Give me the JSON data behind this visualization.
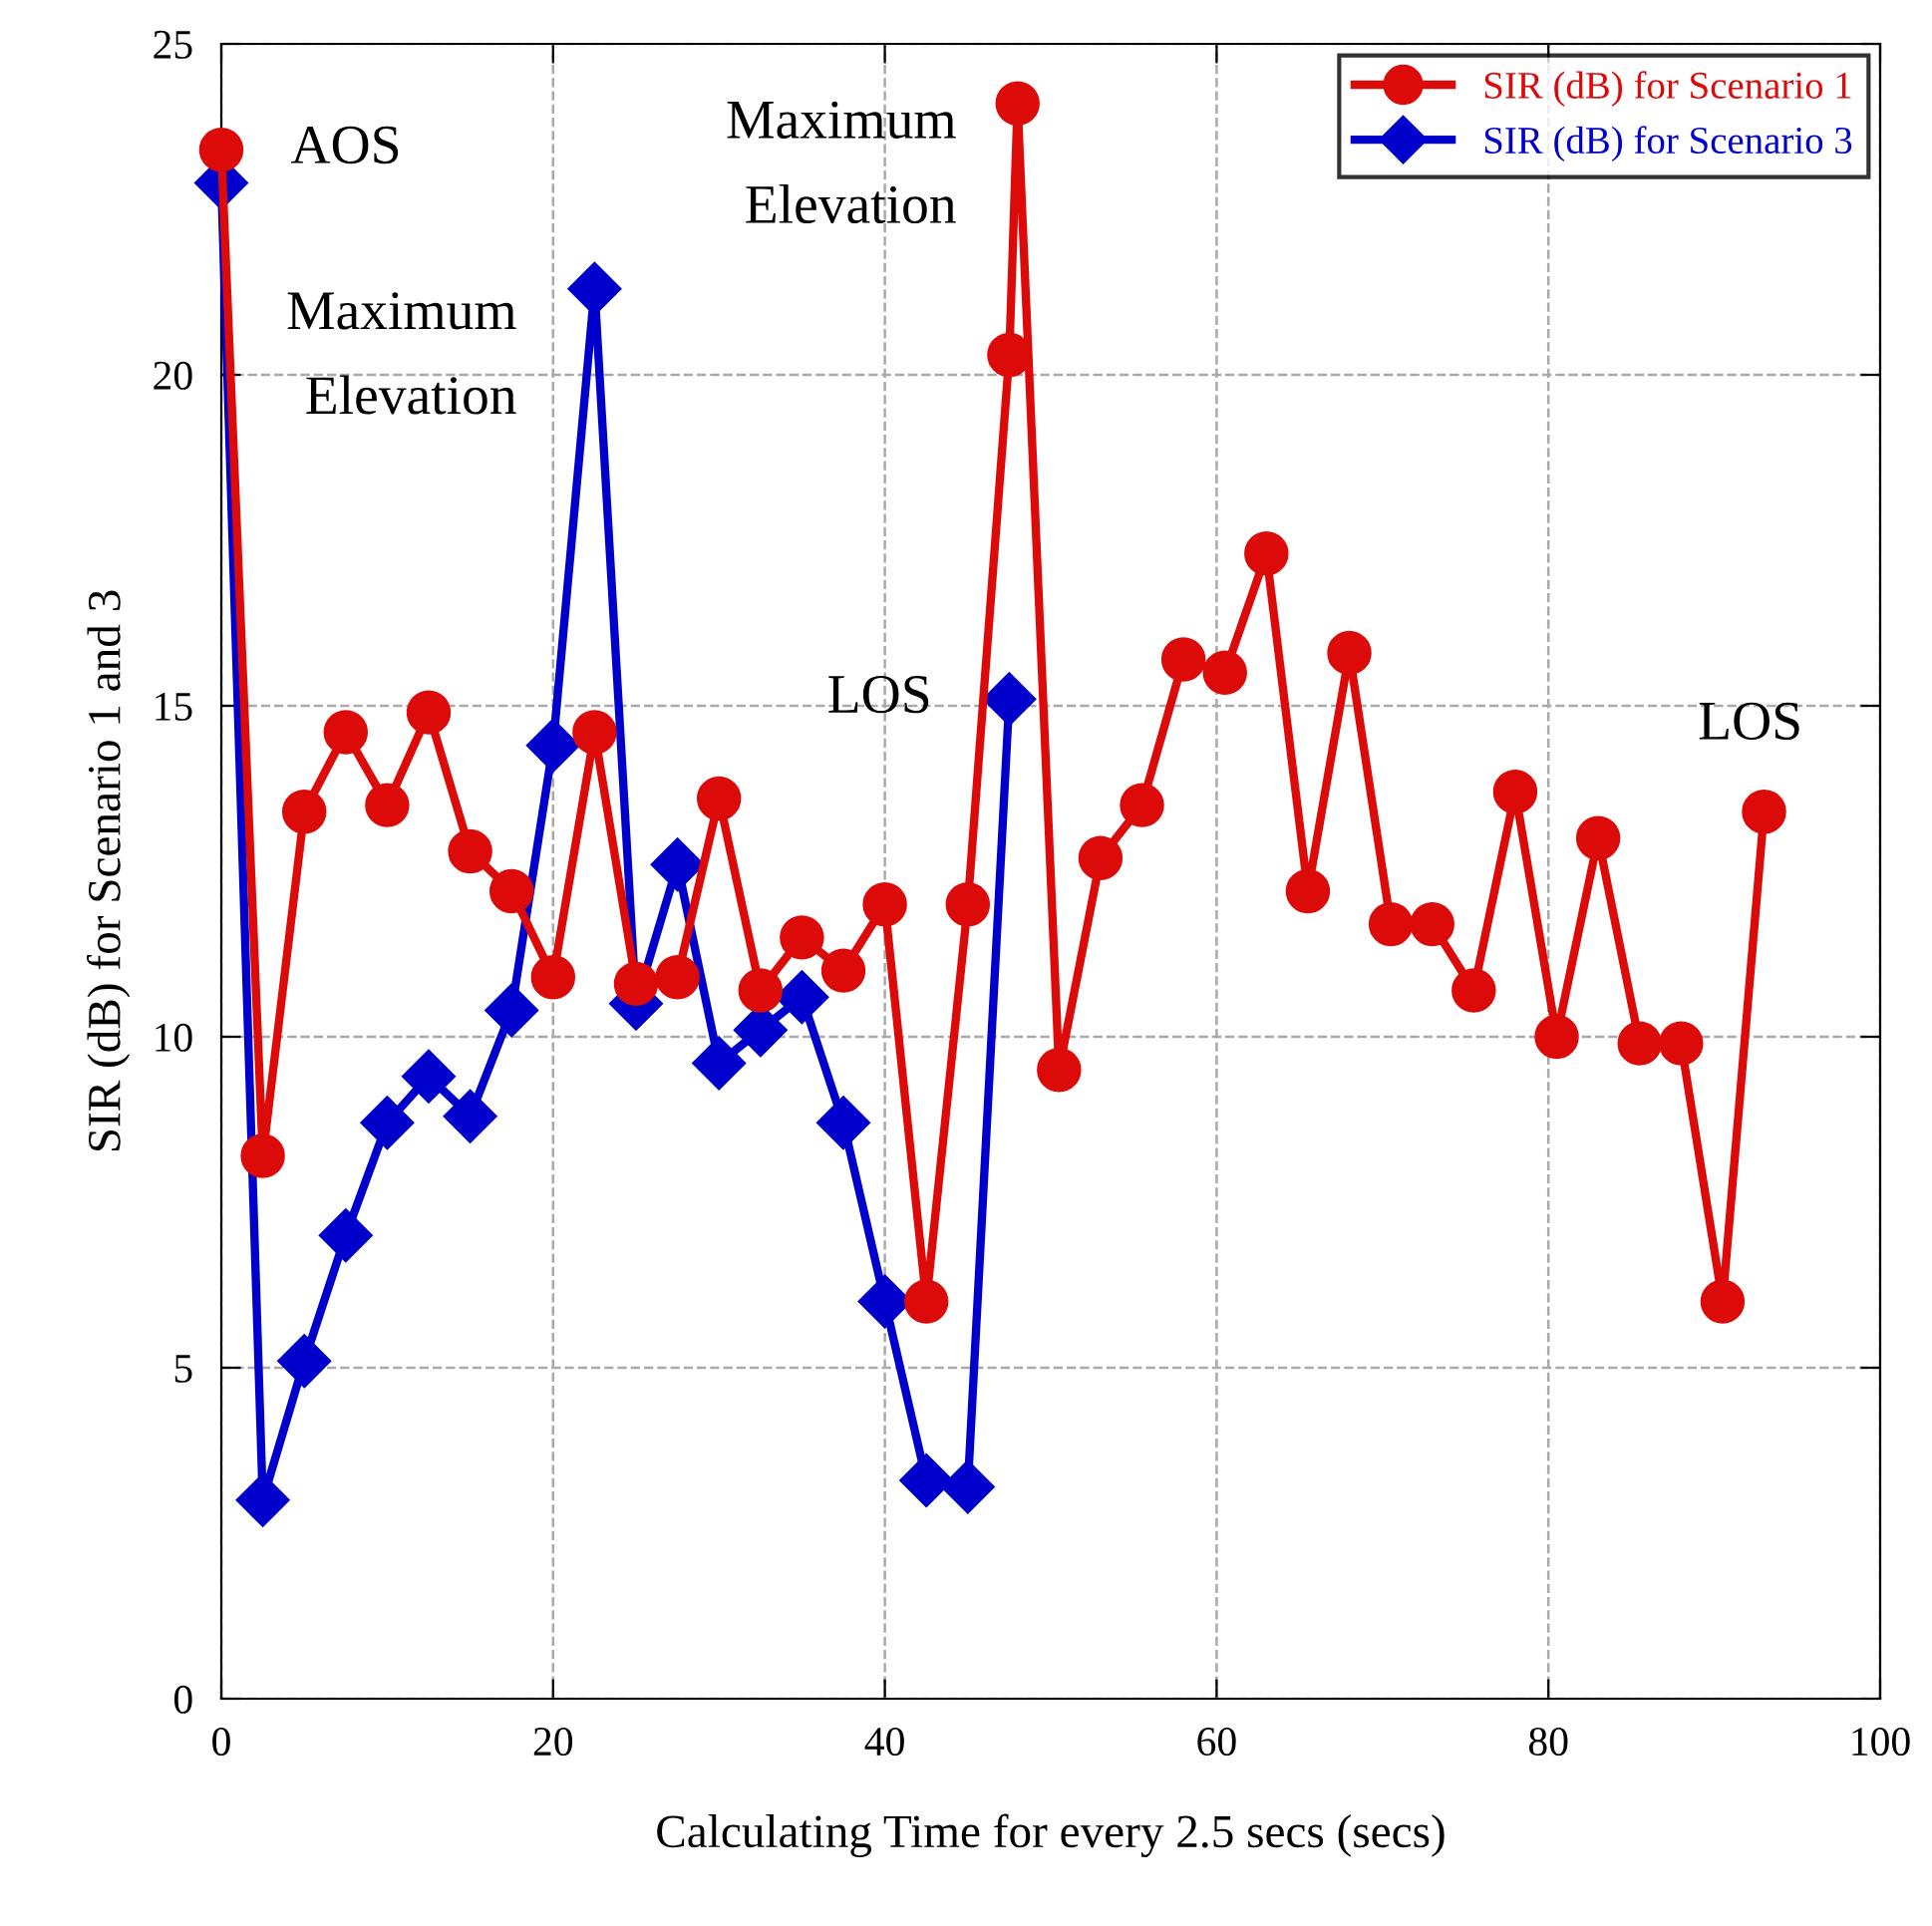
{
  "chart_data": {
    "type": "line",
    "xlabel": "Calculating Time for every 2.5 secs (secs)",
    "ylabel": "SIR (dB) for Scenario 1 and 3",
    "xlim": [
      0,
      100
    ],
    "ylim": [
      0,
      25
    ],
    "xticks": [
      0,
      20,
      40,
      60,
      80,
      100
    ],
    "yticks": [
      0,
      5,
      10,
      15,
      20,
      25
    ],
    "grid": true,
    "legend": "top right",
    "line_style": "solid",
    "series": [
      {
        "name": "SIR (dB) for Scenario 1",
        "color": "#dd0a0a",
        "marker": "circle",
        "x": [
          0,
          2.5,
          5,
          7.5,
          10,
          12.5,
          15,
          17.5,
          20,
          22.5,
          25,
          27.5,
          30,
          32.5,
          35,
          37.5,
          40,
          42.5,
          45,
          47.5,
          48,
          50.5,
          53,
          55.5,
          58,
          60.5,
          63,
          65.5,
          68,
          70.5,
          73,
          75.5,
          78,
          80.5,
          83,
          85.5,
          88,
          90.5,
          93
        ],
        "values": [
          23.4,
          8.2,
          13.4,
          14.6,
          13.5,
          14.9,
          12.8,
          12.2,
          10.9,
          14.6,
          10.8,
          10.9,
          13.6,
          10.7,
          11.5,
          11.0,
          12.0,
          6.0,
          12.0,
          20.3,
          24.1,
          9.5,
          12.7,
          13.5,
          15.7,
          15.5,
          17.3,
          12.2,
          15.8,
          11.7,
          11.7,
          10.7,
          13.7,
          10.0,
          13.0,
          9.9,
          9.9,
          6.0,
          13.4
        ]
      },
      {
        "name": "SIR (dB) for Scenario 3",
        "color": "#0000cc",
        "marker": "diamond",
        "x": [
          0,
          2.5,
          5,
          7.5,
          10,
          12.5,
          15,
          17.5,
          20,
          22.5,
          25,
          27.5,
          30,
          32.5,
          35,
          37.5,
          40,
          42.5,
          45,
          47.5
        ],
        "values": [
          22.9,
          3.0,
          5.1,
          7.0,
          8.7,
          9.4,
          8.8,
          10.4,
          14.4,
          21.3,
          10.5,
          12.6,
          9.6,
          10.1,
          10.6,
          8.7,
          6.0,
          3.3,
          3.2,
          15.1
        ]
      }
    ],
    "annotations": [
      {
        "text": "AOS",
        "x": 0,
        "y": 23.4
      },
      {
        "text": "Maximum\nElevation",
        "x": 22.5,
        "y": 21.3
      },
      {
        "text": "Maximum\nElevation",
        "x": 48,
        "y": 24.1
      },
      {
        "text": "LOS",
        "x": 47.5,
        "y": 15.1
      },
      {
        "text": "LOS",
        "x": 93,
        "y": 13.4
      }
    ]
  }
}
